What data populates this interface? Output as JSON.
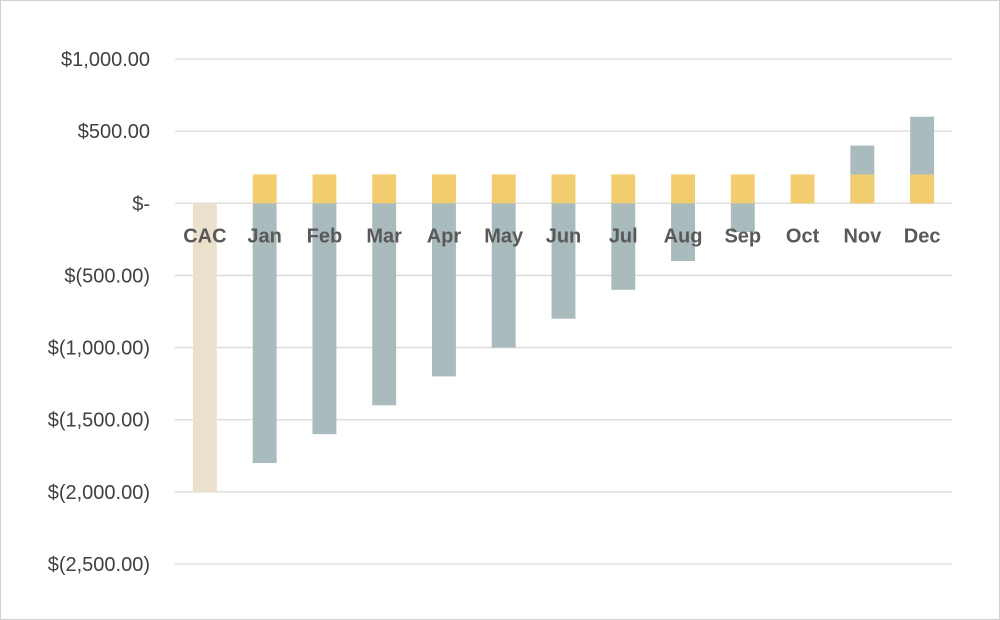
{
  "chart_data": {
    "type": "bar",
    "title": "",
    "xlabel": "",
    "ylabel": "",
    "ylim": [
      -2500,
      1000
    ],
    "grid": true,
    "legend": "none",
    "y_ticks": [
      {
        "value": 1000,
        "label": "$1,000.00"
      },
      {
        "value": 500,
        "label": "$500.00"
      },
      {
        "value": 0,
        "label": "$-"
      },
      {
        "value": -500,
        "label": "$(500.00)"
      },
      {
        "value": -1000,
        "label": "$(1,000.00)"
      },
      {
        "value": -1500,
        "label": "$(1,500.00)"
      },
      {
        "value": -2000,
        "label": "$(2,000.00)"
      },
      {
        "value": -2500,
        "label": "$(2,500.00)"
      }
    ],
    "categories": [
      "CAC",
      "Jan",
      "Feb",
      "Mar",
      "Apr",
      "May",
      "Jun",
      "Jul",
      "Aug",
      "Sep",
      "Oct",
      "Nov",
      "Dec"
    ],
    "series": [
      {
        "color": "#ebe1ca",
        "values": [
          -2000,
          null,
          null,
          null,
          null,
          null,
          null,
          null,
          null,
          null,
          null,
          null,
          null
        ]
      },
      {
        "color": "#aabbbd",
        "values": [
          null,
          -1800,
          -1600,
          -1400,
          -1200,
          -1000,
          -800,
          -600,
          -400,
          -200,
          0,
          400,
          600
        ]
      },
      {
        "color": "#f2cd70",
        "values": [
          null,
          200,
          200,
          200,
          200,
          200,
          200,
          200,
          200,
          200,
          200,
          200,
          200
        ]
      }
    ],
    "colors": {
      "grid": "#d9d9d9",
      "tick_text": "#404040",
      "category_text": "#595959"
    }
  }
}
